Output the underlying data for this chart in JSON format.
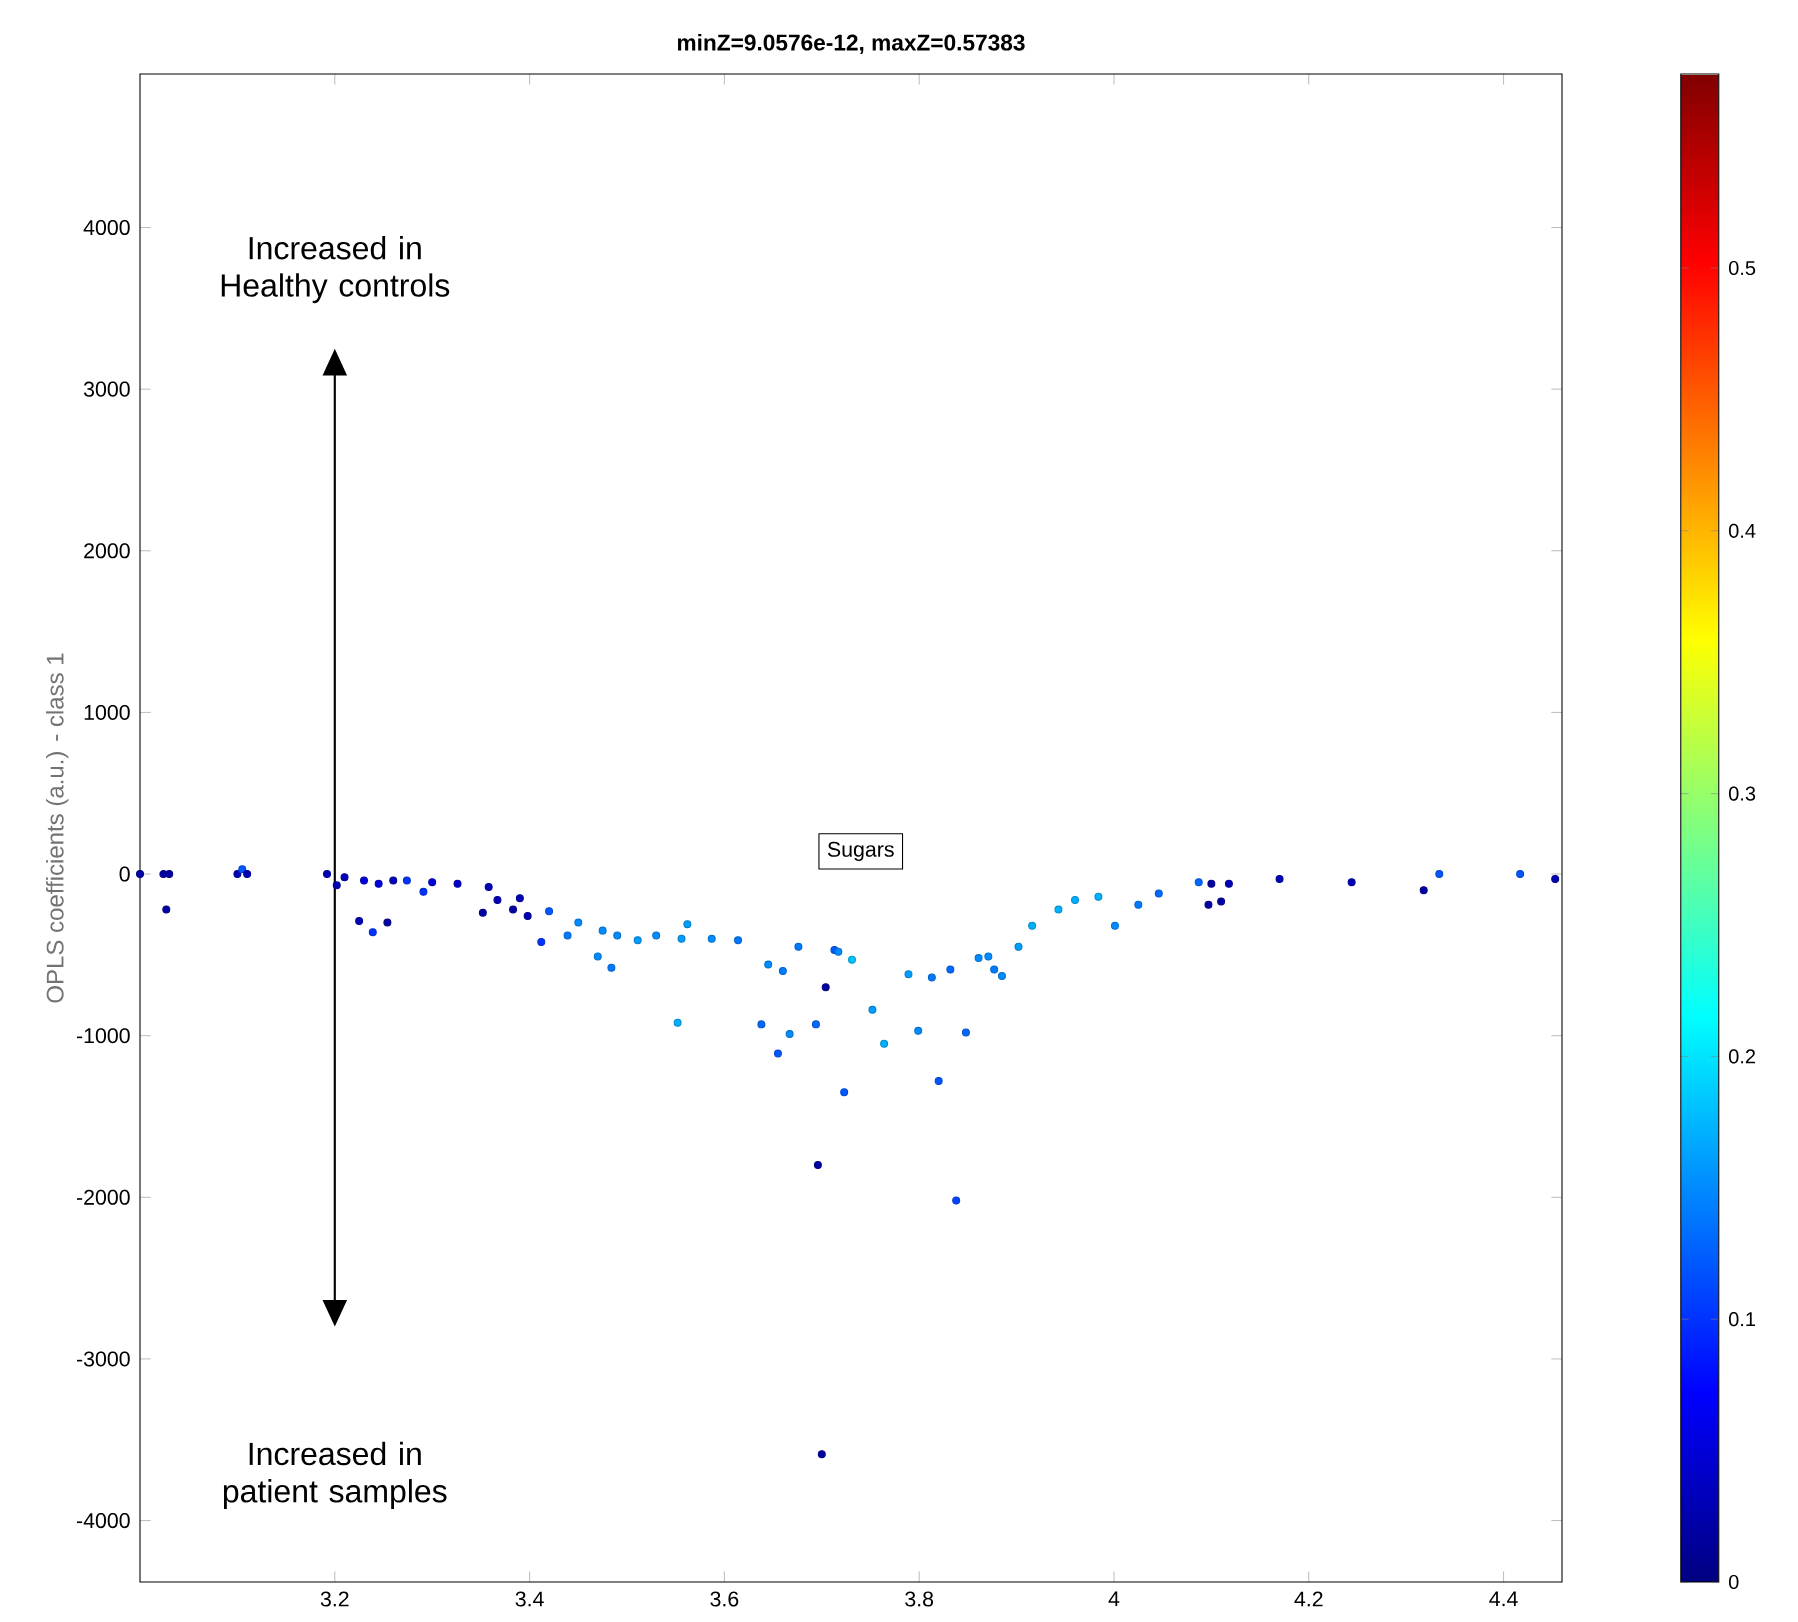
{
  "chart_data": {
    "type": "scatter",
    "title": "minZ=9.0576e-12, maxZ=0.57383",
    "ylabel": "OPLS coefficients (a.u.) - class 1",
    "xlim": [
      3.0,
      4.46
    ],
    "ylim": [
      -4380,
      4950
    ],
    "xticks": [
      3.2,
      3.4,
      3.6,
      3.8,
      4,
      4.2,
      4.4
    ],
    "yticks": [
      -4000,
      -3000,
      -2000,
      -1000,
      0,
      1000,
      2000,
      3000,
      4000
    ],
    "clim": [
      0,
      0.57383
    ],
    "cticks": [
      0,
      0.1,
      0.2,
      0.3,
      0.4,
      0.5
    ],
    "grid": false,
    "marker": "circle",
    "annotations": [
      "Increased in Healthy controls",
      "Increased in patient samples",
      {
        "text": "Sugars",
        "x": 3.74,
        "y": 140
      }
    ],
    "x": [
      3.0,
      3.024,
      3.027,
      3.03,
      3.1,
      3.105,
      3.11,
      3.192,
      3.202,
      3.21,
      3.225,
      3.23,
      3.239,
      3.245,
      3.254,
      3.26,
      3.274,
      3.291,
      3.3,
      3.326,
      3.352,
      3.358,
      3.367,
      3.383,
      3.39,
      3.398,
      3.412,
      3.42,
      3.439,
      3.45,
      3.47,
      3.475,
      3.484,
      3.49,
      3.511,
      3.53,
      3.552,
      3.556,
      3.562,
      3.587,
      3.614,
      3.638,
      3.645,
      3.655,
      3.66,
      3.667,
      3.676,
      3.694,
      3.696,
      3.7,
      3.704,
      3.713,
      3.717,
      3.723,
      3.731,
      3.752,
      3.764,
      3.789,
      3.799,
      3.813,
      3.82,
      3.832,
      3.838,
      3.848,
      3.861,
      3.871,
      3.877,
      3.885,
      3.902,
      3.916,
      3.943,
      3.96,
      3.984,
      4.001,
      4.025,
      4.046,
      4.087,
      4.097,
      4.1,
      4.11,
      4.118,
      4.17,
      4.244,
      4.318,
      4.334,
      4.417,
      4.453
    ],
    "values": [
      0,
      0,
      -220,
      0,
      0,
      30,
      0,
      0,
      -70,
      -20,
      -290,
      -40,
      -360,
      -60,
      -300,
      -40,
      -40,
      -110,
      -50,
      -60,
      -240,
      -80,
      -160,
      -220,
      -150,
      -260,
      -420,
      -230,
      -380,
      -300,
      -510,
      -350,
      -580,
      -380,
      -410,
      -380,
      -920,
      -400,
      -310,
      -400,
      -410,
      -930,
      -560,
      -1110,
      -600,
      -990,
      -450,
      -930,
      -1800,
      -3590,
      -700,
      -470,
      -480,
      -1350,
      -530,
      -840,
      -1050,
      -620,
      -970,
      -640,
      -1280,
      -590,
      -2020,
      -980,
      -520,
      -510,
      -590,
      -630,
      -450,
      -320,
      -220,
      -160,
      -140,
      -320,
      -190,
      -120,
      -50,
      -190,
      -60,
      -170,
      -60,
      -30,
      -50,
      -100,
      0,
      0,
      -30
    ],
    "cvalues": [
      0.02,
      0.02,
      0.02,
      0.02,
      0.03,
      0.12,
      0.03,
      0.03,
      0.03,
      0.03,
      0.03,
      0.05,
      0.1,
      0.05,
      0.02,
      0.03,
      0.1,
      0.1,
      0.05,
      0.04,
      0.02,
      0.03,
      0.03,
      0.02,
      0.03,
      0.03,
      0.1,
      0.12,
      0.14,
      0.15,
      0.15,
      0.15,
      0.14,
      0.15,
      0.16,
      0.15,
      0.17,
      0.16,
      0.16,
      0.15,
      0.14,
      0.13,
      0.15,
      0.12,
      0.14,
      0.15,
      0.14,
      0.13,
      0.02,
      0.02,
      0.02,
      0.12,
      0.15,
      0.12,
      0.18,
      0.16,
      0.17,
      0.16,
      0.15,
      0.14,
      0.12,
      0.13,
      0.11,
      0.13,
      0.15,
      0.15,
      0.14,
      0.15,
      0.16,
      0.17,
      0.17,
      0.17,
      0.17,
      0.15,
      0.14,
      0.13,
      0.13,
      0.02,
      0.02,
      0.02,
      0.03,
      0.03,
      0.03,
      0.02,
      0.12,
      0.12,
      0.03
    ]
  }
}
